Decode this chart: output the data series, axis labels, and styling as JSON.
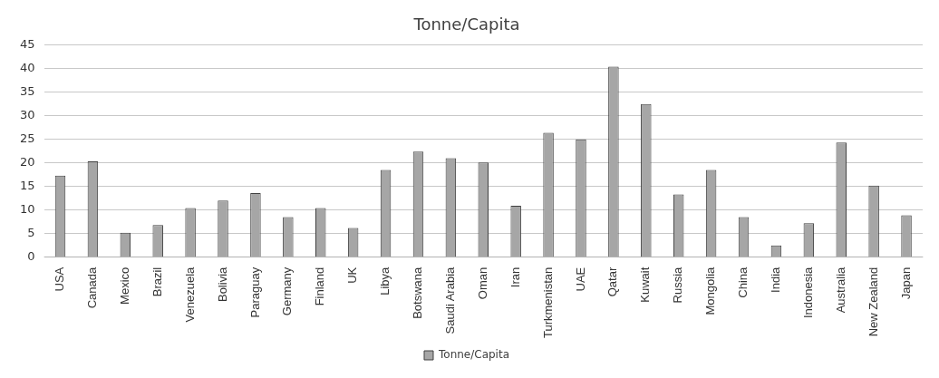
{
  "chart_data": {
    "type": "bar",
    "title": "Tonne/Capita",
    "categories": [
      "USA",
      "Canada",
      "Mexico",
      "Brazil",
      "Venezuela",
      "Bolivia",
      "Paraguay",
      "Germany",
      "Finland",
      "UK",
      "Libya",
      "Botswana",
      "Saudi Arabia",
      "Oman",
      "Iran",
      "Turkmenistan",
      "UAE",
      "Qatar",
      "Kuwait",
      "Russia",
      "Mongolia",
      "China",
      "India",
      "Indonesia",
      "Australia",
      "New Zealand",
      "Japan"
    ],
    "series": [
      {
        "name": "Tonne/Capita",
        "color": "#a6a6a6",
        "values": [
          17.3,
          20.3,
          5.2,
          6.8,
          10.4,
          12.0,
          13.6,
          8.5,
          10.4,
          6.2,
          18.5,
          22.4,
          21.0,
          20.1,
          10.9,
          26.4,
          25.0,
          40.4,
          32.5,
          13.3,
          18.5,
          8.5,
          2.5,
          7.2,
          24.3,
          15.2,
          8.9
        ]
      }
    ],
    "ylim": [
      0,
      45
    ],
    "yticks": [
      0,
      5,
      10,
      15,
      20,
      25,
      30,
      35,
      40,
      45
    ],
    "grid": "y",
    "legend": "bottom"
  }
}
